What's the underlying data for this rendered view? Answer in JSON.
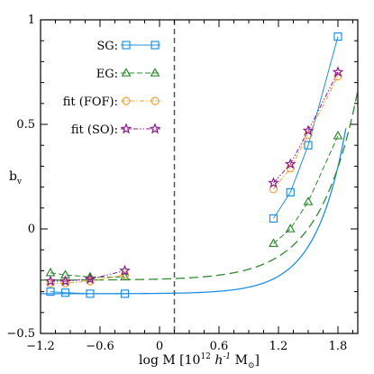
{
  "chart_data": {
    "type": "scatter",
    "xlabel": "log M [10",
    "xlabel_sup": "12",
    "xlabel_mid": " h",
    "xlabel_sup2": "-1",
    "xlabel_end": " M",
    "xlabel_sub": "⊙",
    "xlabel_close": "]",
    "ylabel": "b",
    "ylabel_sub": "v",
    "xlim": [
      -1.2,
      2.0
    ],
    "ylim": [
      -0.5,
      1.0
    ],
    "xticks": [
      -1.2,
      -0.6,
      0,
      0.6,
      1.2,
      1.8
    ],
    "xtick_labels": [
      "−1.2",
      "−0.6",
      "0",
      "0.6",
      "1.2",
      "1.8"
    ],
    "yticks": [
      -0.5,
      0,
      0.5,
      1
    ],
    "ytick_labels": [
      "−0.5",
      "0",
      "0.5",
      "1"
    ],
    "grid": false,
    "legend_position": "top-left",
    "vertical_line_x": 0.15,
    "series": [
      {
        "name": "SG:",
        "color": "#1f8fe6",
        "marker": "square",
        "line": "solid",
        "points": [
          [
            -1.1,
            -0.3
          ],
          [
            -0.95,
            -0.305
          ],
          [
            -0.7,
            -0.31
          ],
          [
            -0.35,
            -0.31
          ],
          [
            1.15,
            0.05
          ],
          [
            1.32,
            0.175
          ],
          [
            1.5,
            0.4
          ],
          [
            1.8,
            0.92
          ]
        ]
      },
      {
        "name": "EG:",
        "color": "#2e8b2e",
        "marker": "triangle",
        "line": "dashed",
        "points": [
          [
            -1.1,
            -0.21
          ],
          [
            -0.95,
            -0.22
          ],
          [
            -0.7,
            -0.23
          ],
          [
            -0.35,
            -0.23
          ],
          [
            1.15,
            -0.07
          ],
          [
            1.32,
            0.0
          ],
          [
            1.5,
            0.13
          ],
          [
            1.8,
            0.445
          ]
        ]
      },
      {
        "name": "fit (FOF):",
        "color": "#f0a040",
        "marker": "circle",
        "line": "dashdot",
        "points": [
          [
            -1.1,
            -0.26
          ],
          [
            -0.95,
            -0.26
          ],
          [
            -0.7,
            -0.25
          ],
          [
            -0.35,
            -0.22
          ],
          [
            1.15,
            0.19
          ],
          [
            1.32,
            0.29
          ],
          [
            1.5,
            0.45
          ],
          [
            1.8,
            0.73
          ]
        ]
      },
      {
        "name": "fit (SO):",
        "color": "#8b1a8b",
        "marker": "star",
        "line": "dashdotdot",
        "points": [
          [
            -1.1,
            -0.25
          ],
          [
            -0.95,
            -0.25
          ],
          [
            -0.7,
            -0.24
          ],
          [
            -0.35,
            -0.2
          ],
          [
            1.15,
            0.22
          ],
          [
            1.32,
            0.31
          ],
          [
            1.5,
            0.47
          ],
          [
            1.8,
            0.75
          ]
        ]
      }
    ],
    "fit_curves": [
      {
        "color": "#1f8fe6",
        "style": "solid",
        "a": -0.31,
        "c": 0.0016,
        "k": 3.3,
        "x0": -1.2,
        "x_end": 1.88
      },
      {
        "color": "#2e8b2e",
        "style": "dashed",
        "a": -0.245,
        "c": 0.005,
        "k": 2.6,
        "x0": -1.2,
        "x_end": 2.0
      }
    ]
  }
}
